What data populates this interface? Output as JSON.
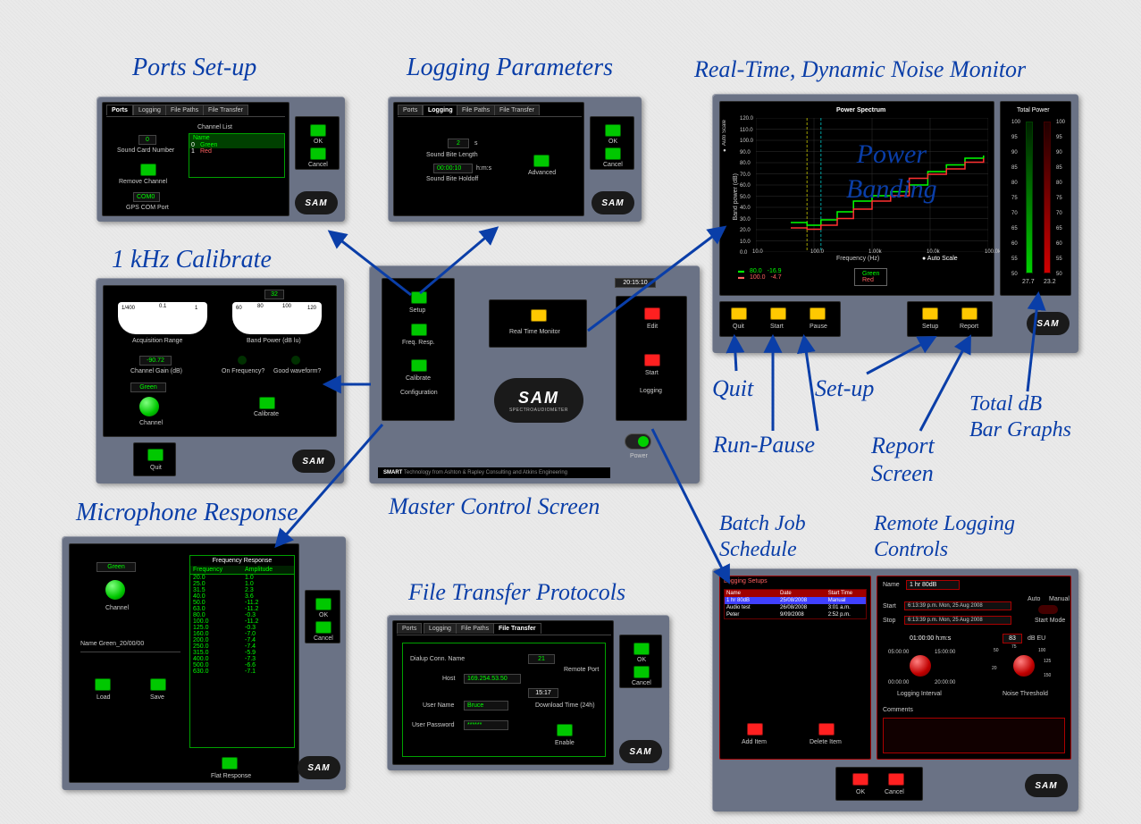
{
  "labels": {
    "ports_setup": "Ports Set-up",
    "logging_params": "Logging Parameters",
    "noise_monitor": "Real-Time, Dynamic Noise Monitor",
    "one_khz": "1 kHz Calibrate",
    "master_control": "Master Control Screen",
    "mic_response": "Microphone Response",
    "file_transfer": "File Transfer Protocols",
    "quit": "Quit",
    "run_pause": "Run-Pause",
    "set_up": "Set-up",
    "report_screen": "Report\nScreen",
    "total_db": "Total dB\nBar Graphs",
    "batch_job": "Batch Job\nSchedule",
    "remote_logging": "Remote Logging\nControls",
    "power_banding": "Power\nBanding"
  },
  "logo": "SAM",
  "common": {
    "ok": "OK",
    "cancel": "Cancel",
    "tabs": [
      "Ports",
      "Logging",
      "File Paths",
      "File Transfer"
    ]
  },
  "ports": {
    "channel_list": "Channel List",
    "name": "Name",
    "rows": [
      {
        "idx": "0",
        "name": "Green"
      },
      {
        "idx": "1",
        "name": "Red"
      }
    ],
    "sound_card_num": "Sound Card Number",
    "sound_card_val": "0",
    "remove_channel": "Remove Channel",
    "gps_port": "GPS COM Port",
    "gps_val": "COM0"
  },
  "logging": {
    "val1": "2",
    "unit1": "s",
    "len_label": "Sound Bite Length",
    "val2": "00:00:10",
    "unit2": "h:m:s",
    "holdoff": "Sound Bite Holdoff",
    "advanced": "Advanced"
  },
  "calibrate": {
    "acq_range": "Acquisition Range",
    "band_power": "Band Power (dB lu)",
    "gain_val": "-90.72",
    "gain_label": "Channel Gain (dB)",
    "on_freq": "On Frequency?",
    "good_wave": "Good waveform?",
    "channel_val": "Green",
    "channel": "Channel",
    "calibrate": "Calibrate",
    "quit": "Quit",
    "scale_val": "32",
    "meter1": [
      "1/400",
      "0.1",
      "1"
    ],
    "meter2": [
      "60",
      "80",
      "100",
      "120"
    ]
  },
  "master": {
    "time": "20:15:10",
    "setup": "Setup",
    "freq_resp": "Freq. Resp.",
    "calibrate2": "Calibrate",
    "configuration": "Configuration",
    "rtm": "Real Time Monitor",
    "edit": "Edit",
    "start": "Start",
    "logging_lbl": "Logging",
    "sam_sub": "SPECTROAUDIOMETER",
    "power": "Power",
    "footer": "SMART Technology from Ashton & Rapley Consulting and Atkins Engineering"
  },
  "mic": {
    "channel_val": "Green",
    "channel": "Channel",
    "name_line": "Name  Green_20/00/00",
    "load": "Load",
    "save": "Save",
    "flat": "Flat Response",
    "freq_resp_title": "Frequency Response",
    "headers": [
      "Frequency",
      "Amplitude"
    ],
    "rows": [
      [
        "20.0",
        "1.0"
      ],
      [
        "25.0",
        "1.0"
      ],
      [
        "31.5",
        "2.3"
      ],
      [
        "40.0",
        "3.6"
      ],
      [
        "50.0",
        "-11.2"
      ],
      [
        "63.0",
        "-11.2"
      ],
      [
        "80.0",
        "-0.3"
      ],
      [
        "100.0",
        "-11.2"
      ],
      [
        "125.0",
        "-0.3"
      ],
      [
        "160.0",
        "-7.0"
      ],
      [
        "200.0",
        "-7.4"
      ],
      [
        "250.0",
        "-7.4"
      ],
      [
        "315.0",
        "-5.9"
      ],
      [
        "400.0",
        "-7.3"
      ],
      [
        "500.0",
        "-6.6"
      ],
      [
        "630.0",
        "-7.1"
      ]
    ]
  },
  "ft": {
    "conn_name": "Dialup Conn. Name",
    "conn_val": "21",
    "host": "Host",
    "host_val": "169.254.53.50",
    "remote_port": "Remote Port",
    "user_name": "User Name",
    "user_val": "Bruce",
    "download_time": "Download Time (24h)",
    "time_val": "15:17",
    "password": "User Password",
    "password_val": "******",
    "enable": "Enable"
  },
  "power": {
    "title": "Power Spectrum",
    "total_power": "Total Power",
    "ylabel": "Band power (dB)",
    "y_ticks": [
      "120.0",
      "110.0",
      "100.0",
      "90.0",
      "80.0",
      "70.0",
      "60.0",
      "50.0",
      "40.0",
      "30.0",
      "20.0",
      "10.0",
      "0.0"
    ],
    "x_ticks": [
      "10.0",
      "100.0",
      "1.00k",
      "10.0k",
      "100.0k"
    ],
    "xlabel": "Frequency (Hz)",
    "auto_scale_left": "Auto Scale",
    "auto_scale": "Auto Scale",
    "green_stat": [
      "80.0",
      "-16.9"
    ],
    "red_stat": [
      "100.0",
      "-4.7"
    ],
    "green": "Green",
    "red": "Red",
    "bar_ticks": [
      "100",
      "95",
      "90",
      "85",
      "80",
      "75",
      "70",
      "65",
      "60",
      "55",
      "50"
    ],
    "bar_vals": [
      "27.7",
      "23.2"
    ],
    "btn_quit": "Quit",
    "btn_start": "Start",
    "btn_pause": "Pause",
    "btn_setup": "Setup",
    "btn_report": "Report",
    "green_line": {
      "color": "#00ff00",
      "pts": [
        [
          0.15,
          0.78
        ],
        [
          0.22,
          0.8
        ],
        [
          0.28,
          0.76
        ],
        [
          0.35,
          0.7
        ],
        [
          0.42,
          0.62
        ],
        [
          0.5,
          0.58
        ],
        [
          0.58,
          0.55
        ],
        [
          0.66,
          0.5
        ],
        [
          0.74,
          0.4
        ],
        [
          0.82,
          0.35
        ],
        [
          0.9,
          0.3
        ],
        [
          0.98,
          0.28
        ]
      ]
    },
    "red_line": {
      "color": "#ff3030",
      "pts": [
        [
          0.15,
          0.82
        ],
        [
          0.22,
          0.83
        ],
        [
          0.28,
          0.8
        ],
        [
          0.35,
          0.75
        ],
        [
          0.42,
          0.68
        ],
        [
          0.5,
          0.62
        ],
        [
          0.58,
          0.58
        ],
        [
          0.66,
          0.45
        ],
        [
          0.74,
          0.42
        ],
        [
          0.82,
          0.38
        ],
        [
          0.9,
          0.33
        ],
        [
          0.98,
          0.3
        ]
      ]
    }
  },
  "batch": {
    "title": "Logging Setups",
    "headers": [
      "Name",
      "Date",
      "Start Time"
    ],
    "rows": [
      [
        "1 hr 80dB",
        "25/08/2008",
        "Manual"
      ],
      [
        "Audio test",
        "26/08/2008",
        "3:01 a.m."
      ],
      [
        "Peter",
        "9/09/2008",
        "2:52 p.m."
      ]
    ],
    "add": "Add Item",
    "delete": "Delete Item",
    "name_lbl": "Name",
    "name_val": "1 hr 80dB",
    "start_lbl": "Start",
    "start_val": "6:13:39 p.m. Mon, 25 Aug 2008",
    "stop_lbl": "Stop",
    "stop_val": "6:13:39 p.m. Mon, 25 Aug 2008",
    "auto": "Auto",
    "manual": "Manual",
    "start_mode": "Start Mode",
    "dur": "01:00:00  h:m:s",
    "t1": "05:00:00",
    "t2": "15:00:00",
    "t3": "00:00:00",
    "t4": "20:00:00",
    "log_int": "Logging Interval",
    "thresh_val": "83",
    "thresh_unit": "dB EU",
    "thresh_ticks": [
      "20",
      "50",
      "75",
      "100",
      "125",
      "150"
    ],
    "noise_thresh": "Noise Threshold",
    "comments": "Comments"
  },
  "colors": {
    "panel": "#6a7285",
    "black": "#000000",
    "green": "#00c800",
    "yellow": "#ffc800",
    "red": "#ff2020",
    "blue": "#0a3ea8",
    "grid": "#333"
  }
}
